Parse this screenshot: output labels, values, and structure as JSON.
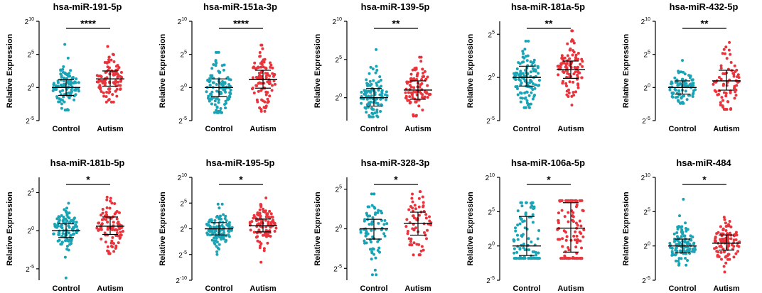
{
  "colors": {
    "control": "#1aa3b5",
    "autism": "#e8343c",
    "axis": "#000000",
    "error_bar": "#000000"
  },
  "chart_data": [
    {
      "type": "scatter",
      "title": "hsa-miR-191-5p",
      "ylabel": "Relative Expression",
      "categories": [
        "Control",
        "Autism"
      ],
      "yticks": [
        {
          "base": "2",
          "exp": "10",
          "v": 10
        },
        {
          "base": "2",
          "exp": "5",
          "v": 5
        },
        {
          "base": "2",
          "exp": "0",
          "v": 0
        },
        {
          "base": "2",
          "exp": "-5",
          "v": -5
        }
      ],
      "ylim": [
        -5,
        10
      ],
      "significance": "****",
      "control": {
        "median": 0.0,
        "q1": -1.2,
        "q3": 1.2,
        "min": -3.4,
        "max": 6.5,
        "n": 110
      },
      "autism": {
        "median": 1.3,
        "q1": 0.2,
        "q3": 2.5,
        "min": -2.2,
        "max": 6.2,
        "n": 95
      }
    },
    {
      "type": "scatter",
      "title": "hsa-miR-151a-3p",
      "ylabel": "Relative Expression",
      "categories": [
        "Control",
        "Autism"
      ],
      "yticks": [
        {
          "base": "2",
          "exp": "10",
          "v": 10
        },
        {
          "base": "2",
          "exp": "5",
          "v": 5
        },
        {
          "base": "2",
          "exp": "0",
          "v": 0
        },
        {
          "base": "2",
          "exp": "-5",
          "v": -5
        }
      ],
      "ylim": [
        -5,
        10
      ],
      "significance": "****",
      "control": {
        "median": 0.0,
        "q1": -1.4,
        "q3": 1.3,
        "min": -3.8,
        "max": 5.3,
        "n": 110
      },
      "autism": {
        "median": 1.2,
        "q1": -0.1,
        "q3": 2.6,
        "min": -3.6,
        "max": 6.4,
        "n": 100
      }
    },
    {
      "type": "scatter",
      "title": "hsa-miR-139-5p",
      "ylabel": "Relative Expression",
      "categories": [
        "Control",
        "Autism"
      ],
      "yticks": [
        {
          "base": "2",
          "exp": "10",
          "v": 10
        },
        {
          "base": "2",
          "exp": "5",
          "v": 5
        },
        {
          "base": "2",
          "exp": "0",
          "v": 0
        }
      ],
      "ylim": [
        -3,
        10
      ],
      "significance": "**",
      "control": {
        "median": 0.0,
        "q1": -1.1,
        "q3": 1.2,
        "min": -2.5,
        "max": 6.3,
        "n": 100
      },
      "autism": {
        "median": 1.0,
        "q1": -0.2,
        "q3": 2.2,
        "min": -2.4,
        "max": 5.3,
        "n": 90
      }
    },
    {
      "type": "scatter",
      "title": "hsa-miR-181a-5p",
      "ylabel": "Relative Expression",
      "categories": [
        "Control",
        "Autism"
      ],
      "yticks": [
        {
          "base": "2",
          "exp": "5",
          "v": 5
        },
        {
          "base": "2",
          "exp": "0",
          "v": 0
        },
        {
          "base": "2",
          "exp": "-5",
          "v": -5
        }
      ],
      "ylim": [
        -5,
        6.5
      ],
      "significance": "**",
      "control": {
        "median": 0.0,
        "q1": -1.0,
        "q3": 1.3,
        "min": -3.5,
        "max": 4.2,
        "n": 110
      },
      "autism": {
        "median": 0.9,
        "q1": -0.1,
        "q3": 1.9,
        "min": -3.2,
        "max": 5.4,
        "n": 100
      }
    },
    {
      "type": "scatter",
      "title": "hsa-miR-432-5p",
      "ylabel": "Relative Expression",
      "categories": [
        "Control",
        "Autism"
      ],
      "yticks": [
        {
          "base": "2",
          "exp": "10",
          "v": 10
        },
        {
          "base": "2",
          "exp": "5",
          "v": 5
        },
        {
          "base": "2",
          "exp": "0",
          "v": 0
        },
        {
          "base": "2",
          "exp": "-5",
          "v": -5
        }
      ],
      "ylim": [
        -5,
        10
      ],
      "significance": "**",
      "control": {
        "median": 0.0,
        "q1": -1.0,
        "q3": 1.0,
        "min": -2.4,
        "max": 4.1,
        "n": 80
      },
      "autism": {
        "median": 1.0,
        "q1": -0.4,
        "q3": 2.6,
        "min": -3.3,
        "max": 6.8,
        "n": 75
      }
    },
    {
      "type": "scatter",
      "title": "hsa-miR-181b-5p",
      "ylabel": "Relative Expression",
      "categories": [
        "Control",
        "Autism"
      ],
      "yticks": [
        {
          "base": "2",
          "exp": "5",
          "v": 5
        },
        {
          "base": "2",
          "exp": "0",
          "v": 0
        },
        {
          "base": "2",
          "exp": "-5",
          "v": -5
        }
      ],
      "ylim": [
        -6.5,
        7
      ],
      "significance": "*",
      "control": {
        "median": 0.0,
        "q1": -0.9,
        "q3": 0.9,
        "min": -6.2,
        "max": 3.6,
        "n": 110
      },
      "autism": {
        "median": 0.6,
        "q1": -0.5,
        "q3": 1.8,
        "min": -3.0,
        "max": 4.4,
        "n": 100
      }
    },
    {
      "type": "scatter",
      "title": "hsa-miR-195-5p",
      "ylabel": "Relative Expression",
      "categories": [
        "Control",
        "Autism"
      ],
      "yticks": [
        {
          "base": "2",
          "exp": "10",
          "v": 10
        },
        {
          "base": "2",
          "exp": "5",
          "v": 5
        },
        {
          "base": "2",
          "exp": "0",
          "v": 0
        },
        {
          "base": "2",
          "exp": "-5",
          "v": -5
        },
        {
          "base": "2",
          "exp": "-10",
          "v": -10
        }
      ],
      "ylim": [
        -10,
        10
      ],
      "significance": "*",
      "control": {
        "median": 0.0,
        "q1": -1.2,
        "q3": 1.2,
        "min": -5.0,
        "max": 4.8,
        "n": 110
      },
      "autism": {
        "median": 0.6,
        "q1": -0.6,
        "q3": 1.9,
        "min": -6.5,
        "max": 6.0,
        "n": 100
      }
    },
    {
      "type": "scatter",
      "title": "hsa-miR-328-3p",
      "ylabel": "Relative Expression",
      "categories": [
        "Control",
        "Autism"
      ],
      "yticks": [
        {
          "base": "2",
          "exp": "5",
          "v": 5
        },
        {
          "base": "2",
          "exp": "0",
          "v": 0
        },
        {
          "base": "2",
          "exp": "-5",
          "v": -5
        }
      ],
      "ylim": [
        -6.5,
        6.5
      ],
      "significance": "*",
      "control": {
        "median": 0.0,
        "q1": -1.3,
        "q3": 1.2,
        "min": -5.8,
        "max": 4.4,
        "n": 75
      },
      "autism": {
        "median": 0.7,
        "q1": -0.8,
        "q3": 2.1,
        "min": -3.3,
        "max": 4.7,
        "n": 65
      }
    },
    {
      "type": "scatter",
      "title": "hsa-miR-106a-5p",
      "ylabel": "Relative Expression",
      "categories": [
        "Control",
        "Autism"
      ],
      "yticks": [
        {
          "base": "2",
          "exp": "10",
          "v": 10
        },
        {
          "base": "2",
          "exp": "5",
          "v": 5
        },
        {
          "base": "2",
          "exp": "0",
          "v": 0
        },
        {
          "base": "2",
          "exp": "-5",
          "v": -5
        }
      ],
      "ylim": [
        -5,
        10
      ],
      "significance": "*",
      "control": {
        "median": 0.0,
        "q1": -1.4,
        "q3": 4.3,
        "min": -1.8,
        "max": 6.3,
        "n": 110
      },
      "autism": {
        "median": 2.6,
        "q1": -0.9,
        "q3": 6.3,
        "min": -1.8,
        "max": 6.6,
        "n": 110
      }
    },
    {
      "type": "scatter",
      "title": "hsa-miR-484",
      "ylabel": "Relative Expression",
      "categories": [
        "Control",
        "Autism"
      ],
      "yticks": [
        {
          "base": "2",
          "exp": "10",
          "v": 10
        },
        {
          "base": "2",
          "exp": "5",
          "v": 5
        },
        {
          "base": "2",
          "exp": "0",
          "v": 0
        },
        {
          "base": "2",
          "exp": "-5",
          "v": -5
        }
      ],
      "ylim": [
        -5,
        10
      ],
      "significance": "*",
      "control": {
        "median": 0.0,
        "q1": -1.0,
        "q3": 1.0,
        "min": -2.8,
        "max": 6.8,
        "n": 110
      },
      "autism": {
        "median": 0.4,
        "q1": -0.6,
        "q3": 1.6,
        "min": -3.8,
        "max": 4.2,
        "n": 100
      }
    }
  ]
}
